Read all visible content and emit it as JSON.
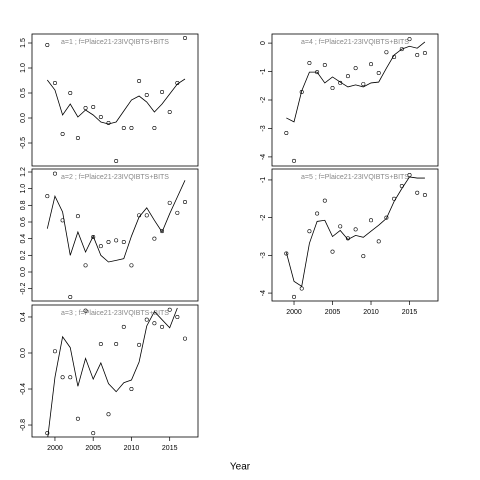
{
  "xlabel": "Year",
  "chart_data": [
    {
      "type": "scatter_line",
      "title": "a=1 ; f=Plaice21-23IVQIBTS+BITS",
      "x": [
        1999,
        2000,
        2001,
        2002,
        2003,
        2004,
        2005,
        2006,
        2007,
        2008,
        2009,
        2010,
        2011,
        2012,
        2013,
        2014,
        2015,
        2016,
        2017
      ],
      "values": [
        1.46,
        0.7,
        -0.32,
        0.5,
        -0.4,
        0.2,
        0.22,
        0.02,
        -0.1,
        -0.86,
        -0.2,
        -0.2,
        0.74,
        0.46,
        -0.2,
        0.52,
        0.12,
        0.7,
        1.6
      ],
      "fit": [
        0.76,
        0.56,
        0.06,
        0.28,
        0.02,
        0.16,
        0.06,
        -0.08,
        -0.12,
        -0.08,
        0.14,
        0.36,
        0.44,
        0.32,
        0.12,
        0.28,
        0.48,
        0.68,
        0.78
      ],
      "xlim": [
        1997.0,
        2018.7
      ],
      "ylim": [
        -0.96,
        1.68
      ],
      "yticks": [
        -0.5,
        {
          "value": 0,
          "label": "0.0"
        },
        {
          "value": 0.5,
          "label": "0.5"
        },
        {
          "value": 1,
          "label": "1.0"
        },
        {
          "value": 1.5,
          "label": "1.5"
        }
      ]
    },
    {
      "type": "scatter_line",
      "title": "a=2 ; f=Plaice21-23IVQIBTS+BITS",
      "x": [
        1999,
        2000,
        2001,
        2002,
        2003,
        2004,
        2005,
        2006,
        2007,
        2008,
        2009,
        2010,
        2011,
        2012,
        2013,
        2014,
        2015,
        2016,
        2017
      ],
      "values": [
        0.91,
        1.18,
        0.62,
        -0.3,
        0.67,
        0.08,
        0.42,
        0.31,
        0.36,
        0.38,
        0.36,
        0.08,
        0.68,
        0.68,
        0.4,
        0.49,
        0.83,
        0.71,
        0.84
      ],
      "fit": [
        0.52,
        0.91,
        0.72,
        0.2,
        0.48,
        0.24,
        0.43,
        0.2,
        0.12,
        0.14,
        0.16,
        0.43,
        0.66,
        0.77,
        0.62,
        0.48,
        0.7,
        0.9,
        1.1
      ],
      "xlim": [
        1997.0,
        2018.7
      ],
      "ylim": [
        -0.348,
        1.236
      ],
      "yticks": [
        -0.2,
        {
          "value": 0,
          "label": "0.0"
        },
        0.2,
        0.4,
        0.6,
        0.8,
        {
          "value": 1,
          "label": "1.0"
        },
        1.2
      ]
    },
    {
      "type": "scatter_line",
      "title": "a=3 ; f=Plaice21-23IVQIBTS+BITS",
      "x": [
        1999,
        2000,
        2001,
        2002,
        2003,
        2004,
        2005,
        2006,
        2007,
        2008,
        2009,
        2010,
        2011,
        2012,
        2013,
        2014,
        2015,
        2016,
        2017
      ],
      "values": [
        -0.89,
        0.02,
        -0.27,
        -0.27,
        -0.73,
        0.47,
        -0.89,
        0.1,
        -0.68,
        0.1,
        0.29,
        -0.4,
        0.09,
        0.37,
        0.33,
        0.29,
        0.48,
        0.4,
        0.16
      ],
      "fit": [
        -0.98,
        -0.27,
        0.18,
        0.06,
        -0.37,
        -0.06,
        -0.29,
        -0.11,
        -0.34,
        -0.43,
        -0.33,
        -0.3,
        -0.1,
        0.3,
        0.46,
        0.37,
        0.28,
        0.5,
        null
      ],
      "xlim": [
        1997.0,
        2018.7
      ],
      "ylim": [
        -0.933,
        0.533
      ],
      "yticks": [
        -0.8,
        -0.4,
        {
          "value": 0,
          "label": "0.0"
        },
        0.4
      ],
      "xticks": [
        2000,
        2005,
        2010,
        2015
      ]
    },
    {
      "type": "scatter_line",
      "title": "a=4 ; f=Plaice21-23IVQIBTS+BITS",
      "x": [
        1999,
        2000,
        2001,
        2002,
        2003,
        2004,
        2005,
        2006,
        2007,
        2008,
        2009,
        2010,
        2011,
        2012,
        2013,
        2014,
        2015,
        2016,
        2017
      ],
      "values": [
        -3.16,
        -4.14,
        -1.72,
        -0.7,
        -1.02,
        -0.77,
        -1.58,
        -1.4,
        -1.16,
        -0.88,
        -1.44,
        -0.74,
        -1.05,
        -0.32,
        -0.49,
        -0.21,
        0.14,
        -0.42,
        -0.35
      ],
      "fit": [
        -2.63,
        -2.77,
        -1.68,
        -1.02,
        -1.02,
        -1.4,
        -1.19,
        -1.37,
        -1.54,
        -1.47,
        -1.54,
        -1.4,
        -1.37,
        -0.88,
        -0.42,
        -0.21,
        -0.11,
        -0.18,
        0.04
      ],
      "xlim": [
        1997.14,
        2018.7
      ],
      "ylim": [
        -4.32,
        0.32
      ],
      "yticks": [
        -4,
        -3,
        -2,
        -1,
        0
      ]
    },
    {
      "type": "scatter_line",
      "title": "a=5 ; f=Plaice21-23IVQIBTS+BITS",
      "x": [
        1999,
        2000,
        2001,
        2002,
        2003,
        2004,
        2005,
        2006,
        2007,
        2008,
        2009,
        2010,
        2011,
        2012,
        2013,
        2014,
        2015,
        2016,
        2017
      ],
      "values": [
        -2.95,
        -4.1,
        -3.88,
        -2.36,
        -1.89,
        -1.55,
        -2.9,
        -2.23,
        -2.55,
        -2.31,
        -3.02,
        -2.07,
        -2.63,
        -2.0,
        -1.5,
        -1.16,
        -0.87,
        -1.34,
        -1.4
      ],
      "fit": [
        -2.92,
        -3.69,
        -3.82,
        -2.68,
        -2.1,
        -2.07,
        -2.5,
        -2.34,
        -2.58,
        -2.47,
        -2.52,
        -2.36,
        -2.2,
        -2.02,
        -1.57,
        -1.23,
        -0.92,
        -0.95,
        -0.95
      ],
      "xlim": [
        1997.14,
        2018.7
      ],
      "ylim": [
        -4.21,
        -0.71
      ],
      "yticks": [
        -4,
        -3,
        -2,
        -1
      ],
      "xticks": [
        2000,
        2005,
        2010,
        2015
      ]
    }
  ]
}
